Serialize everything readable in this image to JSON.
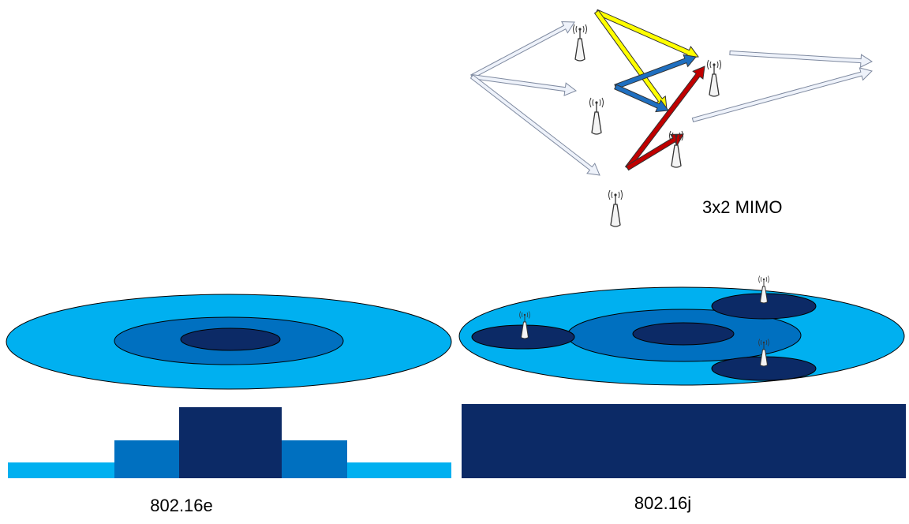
{
  "mimo": {
    "label": "3x2 MIMO"
  },
  "panels": [
    {
      "label": "802.16e"
    },
    {
      "label": "802.16j"
    }
  ]
}
